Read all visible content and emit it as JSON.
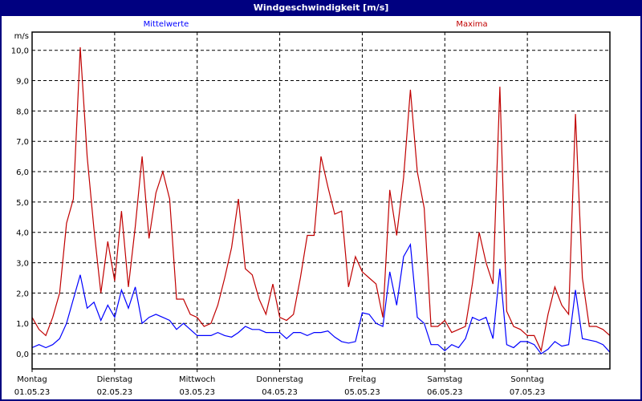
{
  "window": {
    "title": "Windgeschwindigkeit [m/s]"
  },
  "chart_data": {
    "type": "line",
    "title": "Windgeschwindigkeit [m/s]",
    "ylabel": "m/s",
    "ylim": [
      -0.5,
      10.6
    ],
    "yticks": [
      "0,0",
      "1,0",
      "2,0",
      "3,0",
      "4,0",
      "5,0",
      "6,0",
      "7,0",
      "8,0",
      "9,0",
      "10,0"
    ],
    "ytick_values": [
      0,
      1,
      2,
      3,
      4,
      5,
      6,
      7,
      8,
      9,
      10
    ],
    "grid": true,
    "legend_placement": "top",
    "xticks": [
      {
        "day": "Montag",
        "date": "01.05.23"
      },
      {
        "day": "Dienstag",
        "date": "02.05.23"
      },
      {
        "day": "Mittwoch",
        "date": "03.05.23"
      },
      {
        "day": "Donnerstag",
        "date": "04.05.23"
      },
      {
        "day": "Freitag",
        "date": "05.05.23"
      },
      {
        "day": "Samstag",
        "date": "06.05.23"
      },
      {
        "day": "Sonntag",
        "date": "07.05.23"
      }
    ],
    "xlim": [
      "01.05.23 00:00",
      "08.05.23 00:00"
    ],
    "x": [
      "01.05.23 00:00",
      "01.05.23 02:00",
      "01.05.23 04:00",
      "01.05.23 06:00",
      "01.05.23 08:00",
      "01.05.23 10:00",
      "01.05.23 12:00",
      "01.05.23 14:00",
      "01.05.23 16:00",
      "01.05.23 18:00",
      "01.05.23 20:00",
      "01.05.23 22:00",
      "02.05.23 00:00",
      "02.05.23 02:00",
      "02.05.23 04:00",
      "02.05.23 06:00",
      "02.05.23 08:00",
      "02.05.23 10:00",
      "02.05.23 12:00",
      "02.05.23 14:00",
      "02.05.23 16:00",
      "02.05.23 18:00",
      "02.05.23 20:00",
      "02.05.23 22:00",
      "03.05.23 00:00",
      "03.05.23 02:00",
      "03.05.23 04:00",
      "03.05.23 06:00",
      "03.05.23 08:00",
      "03.05.23 10:00",
      "03.05.23 12:00",
      "03.05.23 14:00",
      "03.05.23 16:00",
      "03.05.23 18:00",
      "03.05.23 20:00",
      "03.05.23 22:00",
      "04.05.23 00:00",
      "04.05.23 02:00",
      "04.05.23 04:00",
      "04.05.23 06:00",
      "04.05.23 08:00",
      "04.05.23 10:00",
      "04.05.23 12:00",
      "04.05.23 14:00",
      "04.05.23 16:00",
      "04.05.23 18:00",
      "04.05.23 20:00",
      "04.05.23 22:00",
      "05.05.23 00:00",
      "05.05.23 02:00",
      "05.05.23 04:00",
      "05.05.23 06:00",
      "05.05.23 08:00",
      "05.05.23 10:00",
      "05.05.23 12:00",
      "05.05.23 14:00",
      "05.05.23 16:00",
      "05.05.23 18:00",
      "05.05.23 20:00",
      "05.05.23 22:00",
      "06.05.23 00:00",
      "06.05.23 02:00",
      "06.05.23 04:00",
      "06.05.23 06:00",
      "06.05.23 08:00",
      "06.05.23 10:00",
      "06.05.23 12:00",
      "06.05.23 14:00",
      "06.05.23 16:00",
      "06.05.23 18:00",
      "06.05.23 20:00",
      "06.05.23 22:00",
      "07.05.23 00:00",
      "07.05.23 02:00",
      "07.05.23 04:00",
      "07.05.23 06:00",
      "07.05.23 08:00",
      "07.05.23 10:00",
      "07.05.23 12:00",
      "07.05.23 14:00",
      "07.05.23 16:00",
      "07.05.23 18:00",
      "07.05.23 20:00",
      "07.05.23 22:00",
      "08.05.23 00:00"
    ],
    "series": [
      {
        "name": "Mittelwerte",
        "color": "#0000ff",
        "values": [
          0.2,
          0.3,
          0.2,
          0.3,
          0.5,
          1.0,
          1.8,
          2.6,
          1.5,
          1.7,
          1.1,
          1.6,
          1.2,
          2.1,
          1.5,
          2.2,
          1.0,
          1.2,
          1.3,
          1.2,
          1.1,
          0.8,
          1.0,
          0.8,
          0.6,
          0.6,
          0.6,
          0.7,
          0.6,
          0.55,
          0.7,
          0.9,
          0.8,
          0.8,
          0.7,
          0.7,
          0.7,
          0.5,
          0.7,
          0.7,
          0.6,
          0.7,
          0.7,
          0.75,
          0.55,
          0.4,
          0.35,
          0.4,
          1.35,
          1.3,
          1.0,
          0.9,
          2.7,
          1.6,
          3.2,
          3.6,
          1.2,
          1.0,
          0.3,
          0.3,
          0.1,
          0.3,
          0.2,
          0.5,
          1.2,
          1.1,
          1.2,
          0.5,
          2.8,
          0.3,
          0.2,
          0.4,
          0.4,
          0.3,
          0.0,
          0.15,
          0.4,
          0.25,
          0.3,
          2.1,
          0.5,
          0.45,
          0.4,
          0.3,
          0.05
        ]
      },
      {
        "name": "Maxima",
        "color": "#c00000",
        "values": [
          1.2,
          0.8,
          0.6,
          1.2,
          2.0,
          4.3,
          5.1,
          10.1,
          6.5,
          4.1,
          2.0,
          3.7,
          2.4,
          4.7,
          2.2,
          4.2,
          6.5,
          3.8,
          5.3,
          6.0,
          5.1,
          1.8,
          1.8,
          1.3,
          1.2,
          0.9,
          1.0,
          1.6,
          2.5,
          3.5,
          5.1,
          2.8,
          2.6,
          1.8,
          1.3,
          2.3,
          1.2,
          1.1,
          1.3,
          2.5,
          3.9,
          3.9,
          6.5,
          5.5,
          4.6,
          4.7,
          2.2,
          3.2,
          2.7,
          2.5,
          2.3,
          1.2,
          5.4,
          3.9,
          5.8,
          8.7,
          6.0,
          4.8,
          0.9,
          0.9,
          1.1,
          0.7,
          0.8,
          0.9,
          2.3,
          4.0,
          3.0,
          2.3,
          8.8,
          1.4,
          0.9,
          0.8,
          0.6,
          0.6,
          0.1,
          1.3,
          2.2,
          1.6,
          1.3,
          7.9,
          2.5,
          0.9,
          0.9,
          0.8,
          0.6
        ]
      }
    ]
  }
}
